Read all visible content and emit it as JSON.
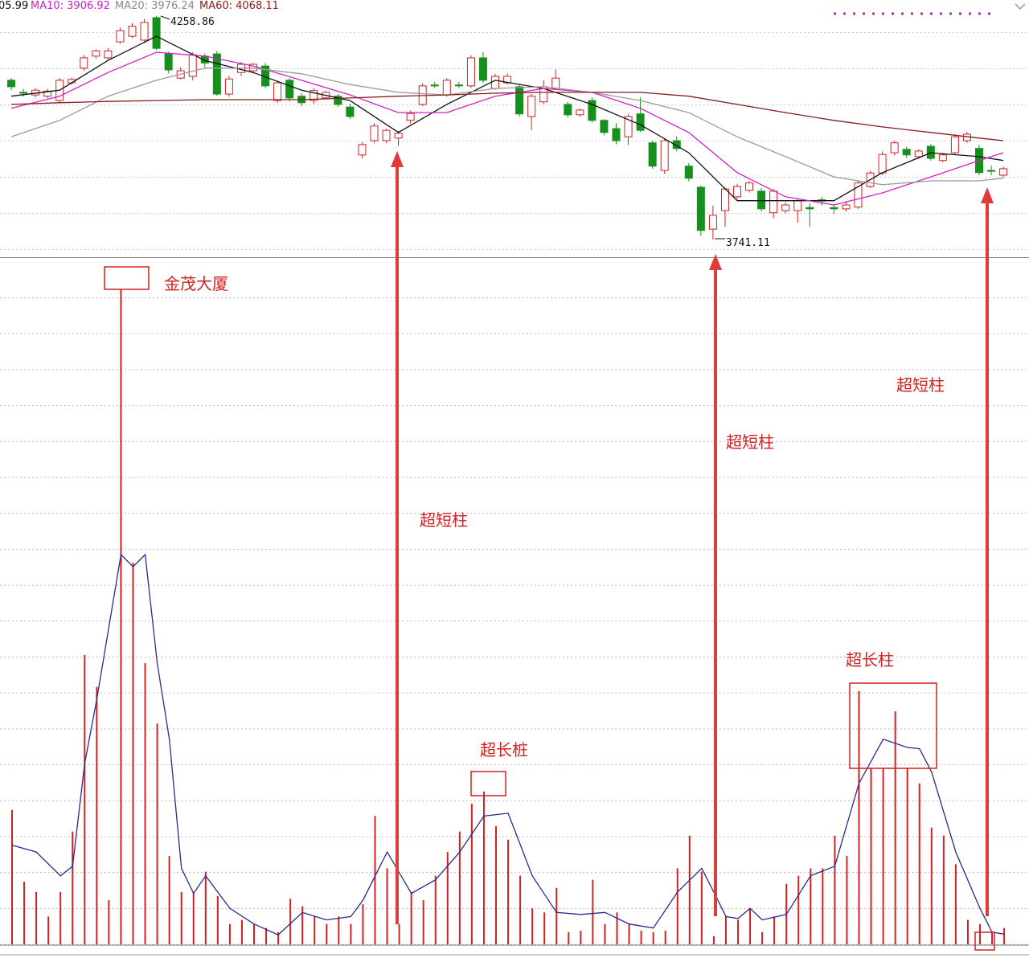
{
  "chart_data": [
    {
      "type": "candlestick",
      "ylim": [
        3700,
        4296
      ],
      "up_color": "#d42020",
      "down_color": "#15901c",
      "open": [
        4110,
        4082,
        4076,
        4073,
        4063,
        4104,
        4138,
        4166,
        4162,
        4199,
        4212,
        4203,
        4255,
        4171,
        4115,
        4119,
        4166,
        4171,
        4078,
        4128,
        4132,
        4143,
        4063,
        4110,
        4073,
        4063,
        4069,
        4073,
        4048,
        3937,
        3970,
        3970,
        3976,
        4017,
        4054,
        4099,
        4076,
        4099,
        4097,
        4162,
        4091,
        4104,
        4095,
        4026,
        4060,
        4091,
        4054,
        4030,
        4063,
        4017,
        3998,
        3979,
        4032,
        3965,
        3901,
        3970,
        3911,
        3862,
        3765,
        3808,
        3840,
        3855,
        3853,
        3803,
        3808,
        3808,
        3815,
        3833,
        3815,
        3812,
        3816,
        3864,
        3895,
        3942,
        3950,
        3933,
        3957,
        3924,
        3942,
        3970,
        3952,
        3901,
        3890
      ],
      "high": [
        4115,
        4090,
        4092,
        4090,
        4115,
        4116,
        4168,
        4182,
        4185,
        4232,
        4242,
        4252,
        4258.86,
        4176,
        4140,
        4175,
        4172,
        4178,
        4120,
        4152,
        4150,
        4150,
        4108,
        4115,
        4080,
        4092,
        4086,
        4078,
        4056,
        3966,
        4010,
        3998,
        3993,
        4040,
        4103,
        4106,
        4115,
        4106,
        4168,
        4175,
        4125,
        4126,
        4100,
        4078,
        4110,
        4135,
        4060,
        4045,
        4070,
        4020,
        4010,
        4032,
        4070,
        3970,
        3976,
        3980,
        3918,
        3866,
        3820,
        3862,
        3870,
        3876,
        3860,
        3858,
        3828,
        3836,
        3825,
        3840,
        3822,
        3830,
        3878,
        3900,
        3945,
        3970,
        3956,
        3950,
        3962,
        3942,
        3985,
        3990,
        3960,
        3912,
        3910
      ],
      "low": [
        4087,
        4072,
        4070,
        4068,
        4058,
        4100,
        4132,
        4160,
        4158,
        4195,
        4208,
        4198,
        4180,
        4126,
        4112,
        4110,
        4140,
        4074,
        4072,
        4120,
        4125,
        4092,
        4058,
        4062,
        4050,
        4055,
        4066,
        4048,
        4020,
        3930,
        3964,
        3965,
        3958,
        4010,
        4050,
        4092,
        4072,
        4092,
        4092,
        4104,
        4088,
        4100,
        4026,
        3994,
        4055,
        4088,
        4024,
        4025,
        4012,
        3982,
        3962,
        3960,
        3990,
        3905,
        3893,
        3945,
        3876,
        3750,
        3741.11,
        3770,
        3834,
        3850,
        3806,
        3790,
        3802,
        3780,
        3770,
        3820,
        3800,
        3806,
        3812,
        3860,
        3890,
        3936,
        3930,
        3928,
        3924,
        3920,
        3938,
        3965,
        3890,
        3890,
        3885
      ],
      "close": [
        4095,
        4080,
        4087,
        4085,
        4110,
        4112,
        4162,
        4178,
        4178,
        4225,
        4235,
        4244,
        4184,
        4134,
        4132,
        4169,
        4150,
        4078,
        4113,
        4147,
        4147,
        4097,
        4104,
        4069,
        4058,
        4086,
        4082,
        4054,
        4026,
        3961,
        4004,
        3994,
        3987,
        4033,
        4097,
        4097,
        4110,
        4097,
        4162,
        4110,
        4119,
        4119,
        4032,
        4073,
        4095,
        4115,
        4030,
        4041,
        4017,
        3989,
        3970,
        4026,
        3994,
        3911,
        3970,
        3952,
        3883,
        3762,
        3797,
        3858,
        3864,
        3872,
        3812,
        3853,
        3821,
        3831,
        3812,
        3830,
        3812,
        3821,
        3872,
        3895,
        3938,
        3965,
        3937,
        3946,
        3929,
        3937,
        3979,
        3985,
        3896,
        3899,
        3905
      ],
      "series": [
        {
          "name": "05.99",
          "color": "#111111",
          "x": [
            0,
            4,
            8,
            12,
            16,
            20,
            24,
            28,
            32,
            36,
            40,
            44,
            48,
            52,
            56,
            60,
            64,
            68,
            72,
            76,
            80,
            82
          ],
          "values": [
            4073,
            4087,
            4156,
            4212,
            4156,
            4128,
            4087,
            4063,
            3989,
            4054,
            4110,
            4091,
            4054,
            4007,
            3942,
            3831,
            3831,
            3831,
            3896,
            3942,
            3933,
            3924
          ]
        },
        {
          "name": "MA10: 3906.92",
          "color": "#d020c8",
          "x": [
            0,
            4,
            8,
            12,
            16,
            20,
            24,
            28,
            32,
            36,
            40,
            44,
            48,
            52,
            56,
            60,
            64,
            68,
            72,
            76,
            80,
            82
          ],
          "values": [
            4045,
            4073,
            4128,
            4175,
            4166,
            4143,
            4110,
            4076,
            4035,
            4035,
            4073,
            4091,
            4082,
            4045,
            3989,
            3896,
            3840,
            3821,
            3849,
            3886,
            3924,
            3942
          ]
        },
        {
          "name": "MA20: 3976.24",
          "color": "#9a9a9a",
          "x": [
            0,
            4,
            8,
            12,
            16,
            20,
            24,
            28,
            32,
            36,
            40,
            44,
            48,
            52,
            56,
            60,
            64,
            68,
            72,
            76,
            80,
            82
          ],
          "values": [
            3979,
            4017,
            4073,
            4110,
            4138,
            4138,
            4125,
            4100,
            4082,
            4076,
            4091,
            4095,
            4082,
            4063,
            4035,
            3979,
            3933,
            3886,
            3868,
            3877,
            3877,
            3883
          ]
        },
        {
          "name": "MA60: 4068.11",
          "color": "#8a1a1a",
          "x": [
            0,
            4,
            8,
            12,
            16,
            20,
            24,
            28,
            32,
            36,
            40,
            44,
            48,
            52,
            56,
            60,
            64,
            68,
            72,
            76,
            80,
            82
          ],
          "values": [
            4054,
            4058,
            4061,
            4063,
            4065,
            4065,
            4065,
            4069,
            4073,
            4076,
            4080,
            4082,
            4082,
            4082,
            4073,
            4054,
            4035,
            4017,
            4002,
            3989,
            3976,
            3970
          ]
        }
      ]
    },
    {
      "type": "bar",
      "ylim": [
        0,
        100
      ],
      "color": "#d42020",
      "values": [
        19.8,
        9.2,
        7.7,
        4.1,
        7.7,
        16.6,
        42.6,
        37.9,
        6.5,
        96.4,
        56.2,
        41.4,
        32.5,
        13.0,
        7.7,
        7.7,
        10.7,
        7.1,
        3.0,
        3.6,
        3.0,
        2.4,
        1.8,
        6.7,
        5.6,
        4.1,
        3.0,
        4.1,
        3.0,
        5.9,
        18.9,
        11.2,
        3.0,
        7.7,
        6.5,
        10.1,
        13.6,
        16.6,
        20.7,
        22.5,
        17.4,
        15.4,
        10.1,
        5.3,
        4.7,
        8.3,
        1.8,
        2.0,
        9.5,
        3.0,
        4.7,
        3.0,
        2.0,
        1.8,
        2.0,
        11.2,
        16.0,
        10.7,
        1.2,
        4.1,
        3.6,
        5.3,
        1.8,
        4.1,
        8.9,
        10.1,
        11.2,
        11.2,
        16.0,
        13.0,
        37.3,
        26.0,
        26.0,
        34.3,
        26.0,
        23.7,
        17.2,
        16.0,
        11.8,
        3.6,
        3.0,
        1.8,
        2.4
      ],
      "series": [
        {
          "color": "#2a2a8a",
          "x": [
            0,
            2,
            4,
            5,
            6,
            7,
            9,
            10,
            11,
            12,
            13,
            14,
            15,
            16,
            18,
            20,
            22,
            24,
            26,
            28,
            29,
            31,
            33,
            35,
            37,
            39,
            41,
            43,
            45,
            47,
            49,
            51,
            53,
            55,
            57,
            58,
            59,
            60,
            61,
            62,
            64,
            66,
            68,
            70,
            72,
            74,
            75,
            76,
            78,
            80,
            81,
            82
          ],
          "values": [
            14.6,
            13.6,
            10.1,
            11.5,
            26.6,
            36.1,
            57.4,
            55.6,
            57.4,
            41.4,
            30.2,
            11.2,
            7.5,
            10.1,
            5.3,
            3.0,
            1.4,
            4.7,
            3.6,
            4.1,
            6.5,
            13.6,
            7.5,
            9.5,
            13.6,
            18.9,
            19.3,
            10.1,
            4.7,
            4.4,
            4.7,
            3.0,
            2.4,
            7.7,
            11.2,
            7.7,
            4.1,
            3.8,
            5.3,
            3.6,
            4.4,
            10.1,
            11.5,
            23.7,
            30.2,
            29.0,
            28.8,
            25.4,
            13.6,
            5.3,
            1.8,
            1.5
          ]
        }
      ],
      "annotations": [
        "金茂大厦",
        "超短柱",
        "超长桩",
        "超短柱",
        "超短柱",
        "超长柱"
      ]
    }
  ]
}
